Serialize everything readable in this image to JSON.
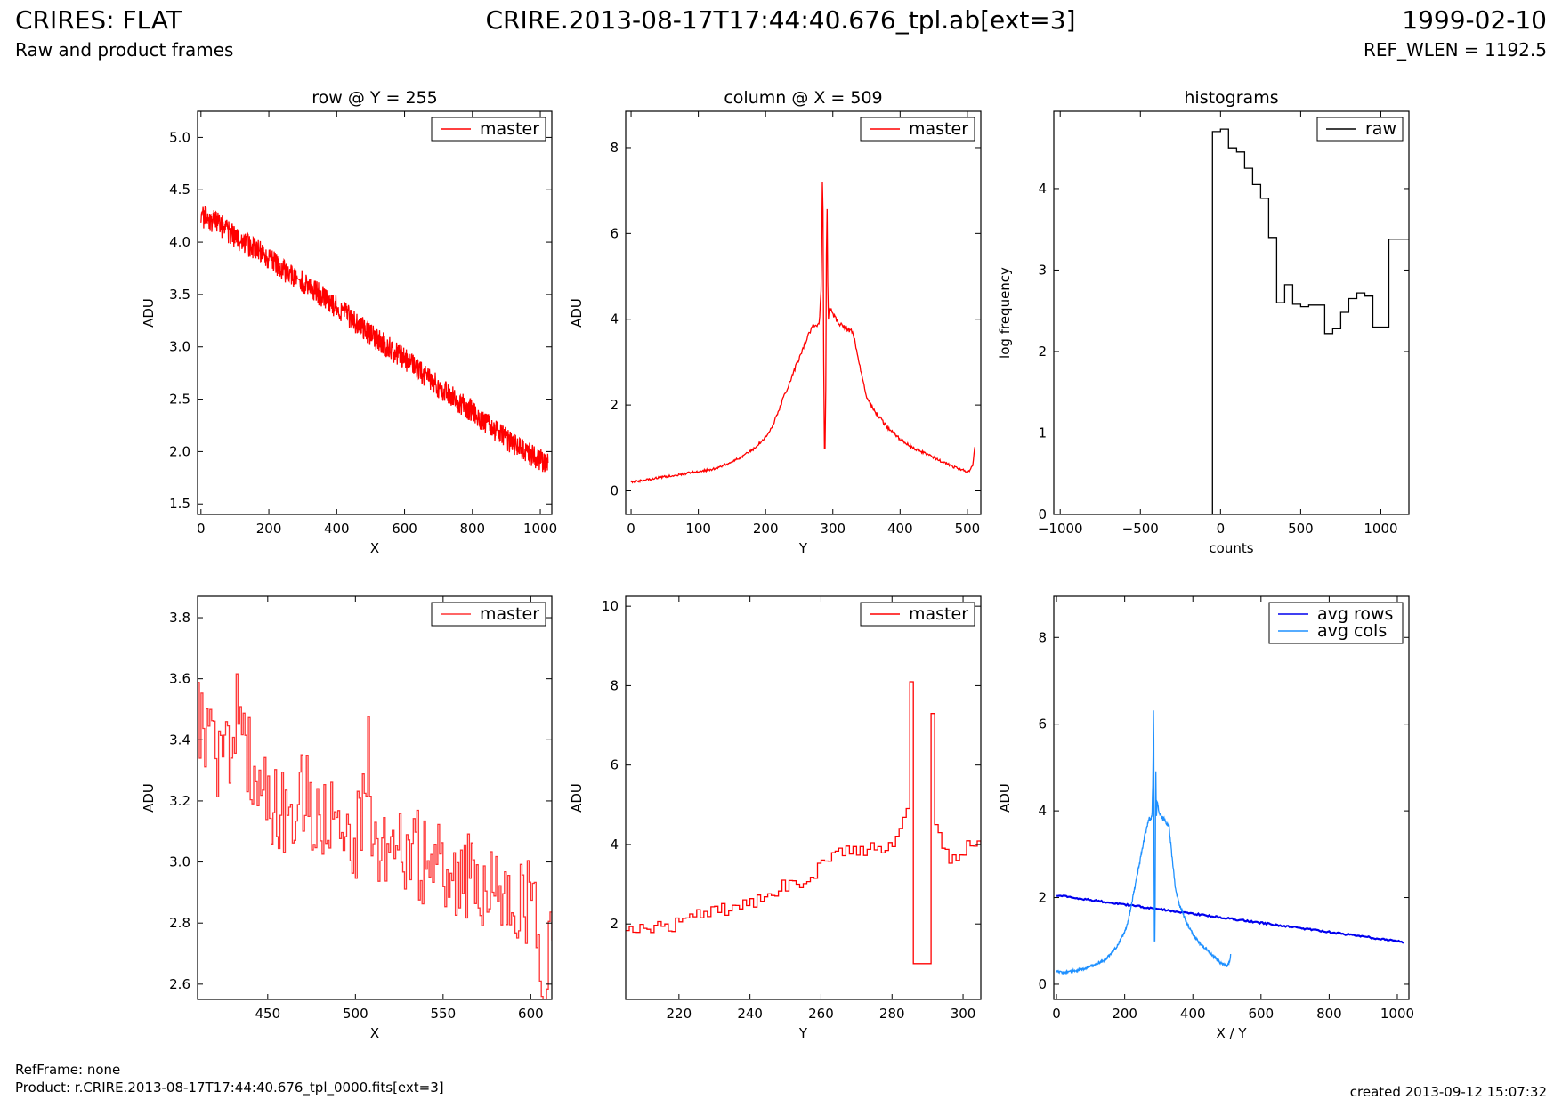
{
  "header": {
    "title_left": "CRIRES: FLAT",
    "subtitle_left": "Raw and product frames",
    "title_center": "CRIRE.2013-08-17T17:44:40.676_tpl.ab[ext=3]",
    "title_right": "1999-02-10",
    "subtitle_right": "REF_WLEN = 1192.5"
  },
  "footer": {
    "ref_frame": "RefFrame: none",
    "product": "Product: r.CRIRE.2013-08-17T17:44:40.676_tpl_0000.fits[ext=3]",
    "created": "created 2013-09-12 15:07:32"
  },
  "chart_data": [
    {
      "type": "line",
      "title": "row @ Y = 255",
      "xlabel": "X",
      "ylabel": "ADU",
      "xlim": [
        -10,
        1034
      ],
      "ylim": [
        1.4,
        5.25
      ],
      "xticks": [
        0,
        200,
        400,
        600,
        800,
        1000
      ],
      "yticks": [
        1.5,
        2.0,
        2.5,
        3.0,
        3.5,
        4.0,
        4.5,
        5.0
      ],
      "ytick_labels": [
        "1.5",
        "2.0",
        "2.5",
        "3.0",
        "3.5",
        "4.0",
        "4.5",
        "5.0"
      ],
      "legend": "top-right",
      "series": [
        {
          "name": "master",
          "color": "#ff0000",
          "step": false,
          "x": [
            0,
            50,
            100,
            150,
            200,
            250,
            300,
            350,
            400,
            450,
            500,
            550,
            600,
            650,
            700,
            750,
            800,
            850,
            900,
            950,
            1000,
            1023
          ],
          "y": [
            4.25,
            4.18,
            4.05,
            3.95,
            3.85,
            3.72,
            3.62,
            3.5,
            3.38,
            3.25,
            3.12,
            3.0,
            2.88,
            2.75,
            2.62,
            2.5,
            2.38,
            2.25,
            2.12,
            2.02,
            1.92,
            1.88
          ]
        }
      ]
    },
    {
      "type": "line",
      "title": "column @ X = 509",
      "xlabel": "Y",
      "ylabel": "ADU",
      "xlim": [
        -8,
        520
      ],
      "ylim": [
        -0.55,
        8.85
      ],
      "xticks": [
        0,
        100,
        200,
        300,
        400,
        500
      ],
      "yticks": [
        0,
        2,
        4,
        6,
        8
      ],
      "legend": "top-right",
      "series": [
        {
          "name": "master",
          "color": "#ff0000",
          "step": false,
          "x": [
            0,
            20,
            40,
            60,
            80,
            100,
            120,
            140,
            160,
            180,
            200,
            210,
            220,
            230,
            240,
            250,
            260,
            270,
            280,
            283,
            285,
            287,
            289,
            291,
            293,
            295,
            300,
            310,
            320,
            330,
            340,
            350,
            360,
            380,
            400,
            420,
            440,
            460,
            480,
            500,
            505,
            508,
            511
          ],
          "y": [
            0.2,
            0.25,
            0.3,
            0.35,
            0.4,
            0.45,
            0.5,
            0.6,
            0.75,
            0.95,
            1.25,
            1.5,
            1.9,
            2.3,
            2.7,
            3.1,
            3.5,
            3.85,
            3.9,
            4.9,
            8.1,
            1.0,
            1.0,
            7.3,
            3.9,
            4.3,
            4.1,
            3.9,
            3.8,
            3.7,
            2.9,
            2.2,
            1.9,
            1.5,
            1.2,
            1.0,
            0.85,
            0.7,
            0.55,
            0.45,
            0.5,
            0.6,
            1.0
          ]
        }
      ]
    },
    {
      "type": "line",
      "title": "histograms",
      "xlabel": "counts",
      "ylabel": "log frequency",
      "xlim": [
        -1040,
        1175
      ],
      "ylim": [
        0,
        4.95
      ],
      "xticks": [
        -1000,
        -500,
        0,
        500,
        1000
      ],
      "xtick_labels": [
        "−1000",
        "−500",
        "0",
        "500",
        "1000"
      ],
      "yticks": [
        0,
        1,
        2,
        3,
        4
      ],
      "legend": "top-right",
      "series": [
        {
          "name": "raw",
          "color": "#000000",
          "step": true,
          "x": [
            -1040,
            -50,
            0,
            50,
            100,
            150,
            200,
            250,
            300,
            350,
            400,
            450,
            500,
            550,
            600,
            650,
            700,
            750,
            800,
            850,
            900,
            950,
            1000,
            1050,
            1100,
            1150,
            1175
          ],
          "y": [
            0,
            4.7,
            4.73,
            4.5,
            4.45,
            4.25,
            4.05,
            3.88,
            3.4,
            2.6,
            2.82,
            2.58,
            2.55,
            2.57,
            2.57,
            2.22,
            2.28,
            2.48,
            2.65,
            2.72,
            2.68,
            2.3,
            2.3,
            3.38,
            3.38,
            3.38,
            3.38
          ]
        }
      ]
    },
    {
      "type": "line",
      "title": "",
      "xlabel": "X",
      "ylabel": "ADU",
      "xlim": [
        410,
        612
      ],
      "ylim": [
        2.55,
        3.87
      ],
      "xticks": [
        450,
        500,
        550,
        600
      ],
      "yticks": [
        2.6,
        2.8,
        3.0,
        3.2,
        3.4,
        3.6,
        3.8
      ],
      "ytick_labels": [
        "2.6",
        "2.8",
        "3.0",
        "3.2",
        "3.4",
        "3.6",
        "3.8"
      ],
      "legend": "top-right",
      "series": [
        {
          "name": "master",
          "color": "#ff3333",
          "step": true,
          "x": [
            410,
            420,
            430,
            433,
            440,
            450,
            460,
            470,
            480,
            490,
            500,
            507,
            510,
            520,
            530,
            540,
            550,
            560,
            570,
            580,
            590,
            600,
            608,
            612
          ],
          "y": [
            3.45,
            3.35,
            3.3,
            3.57,
            3.3,
            3.2,
            3.15,
            3.25,
            3.1,
            3.2,
            3.05,
            3.35,
            3.05,
            3.05,
            3.05,
            3.0,
            3.0,
            2.95,
            2.95,
            2.9,
            2.88,
            2.85,
            2.65,
            2.85
          ]
        }
      ]
    },
    {
      "type": "line",
      "title": "",
      "xlabel": "Y",
      "ylabel": "ADU",
      "xlim": [
        205,
        305
      ],
      "ylim": [
        0.1,
        10.25
      ],
      "xticks": [
        220,
        240,
        260,
        280,
        300
      ],
      "yticks": [
        2,
        4,
        6,
        8,
        10
      ],
      "legend": "top-right",
      "series": [
        {
          "name": "master",
          "color": "#ff0000",
          "step": true,
          "x": [
            205,
            210,
            215,
            220,
            225,
            230,
            235,
            240,
            245,
            250,
            255,
            260,
            262,
            265,
            270,
            275,
            280,
            284,
            285,
            286,
            291,
            292,
            293,
            295,
            297,
            300,
            302,
            305
          ],
          "y": [
            1.8,
            1.9,
            1.95,
            2.0,
            2.3,
            2.3,
            2.4,
            2.5,
            2.7,
            3.0,
            3.05,
            3.5,
            3.7,
            3.9,
            3.85,
            3.9,
            3.9,
            5.0,
            8.1,
            1.0,
            7.3,
            4.5,
            4.3,
            3.8,
            3.6,
            3.9,
            4.1,
            4.0
          ]
        }
      ]
    },
    {
      "type": "line",
      "title": "",
      "xlabel": "X / Y",
      "ylabel": "ADU",
      "xlim": [
        -8,
        1034
      ],
      "ylim": [
        -0.35,
        8.95
      ],
      "xticks": [
        0,
        200,
        400,
        600,
        800,
        1000
      ],
      "yticks": [
        0,
        2,
        4,
        6,
        8
      ],
      "legend": "top-right",
      "series": [
        {
          "name": "avg rows",
          "color": "#0000ee",
          "step": false,
          "x": [
            0,
            1023
          ],
          "y": [
            2.05,
            0.97
          ]
        },
        {
          "name": "avg cols",
          "color": "#1e90ff",
          "step": false,
          "x": [
            0,
            20,
            40,
            60,
            80,
            100,
            120,
            140,
            160,
            180,
            200,
            210,
            220,
            230,
            240,
            250,
            260,
            270,
            280,
            283,
            285,
            287,
            289,
            291,
            293,
            295,
            300,
            310,
            320,
            330,
            340,
            350,
            360,
            380,
            400,
            420,
            440,
            460,
            480,
            500,
            505,
            508,
            511
          ],
          "y": [
            0.3,
            0.27,
            0.3,
            0.32,
            0.35,
            0.42,
            0.48,
            0.55,
            0.7,
            0.9,
            1.2,
            1.45,
            1.85,
            2.25,
            2.65,
            3.05,
            3.45,
            3.8,
            3.85,
            4.8,
            6.9,
            1.0,
            1.0,
            5.2,
            3.85,
            4.2,
            4.0,
            3.85,
            3.75,
            3.65,
            2.85,
            2.15,
            1.85,
            1.45,
            1.15,
            0.95,
            0.8,
            0.65,
            0.5,
            0.42,
            0.48,
            0.55,
            0.68
          ]
        }
      ]
    }
  ]
}
